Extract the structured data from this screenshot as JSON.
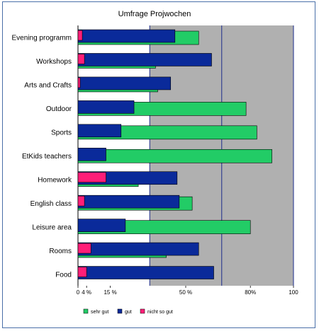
{
  "chart_data": {
    "type": "bar",
    "orientation": "horizontal",
    "title": "Umfrage Projwochen",
    "categories": [
      "Evening programm",
      "Workshops",
      "Arts and Crafts",
      "Outdoor",
      "Sports",
      "EtKids teachers",
      "Homework",
      "English class",
      "Leisure area",
      "Rooms",
      "Food"
    ],
    "series": [
      {
        "name": "sehr gut",
        "color": "#22cc66",
        "values": [
          56,
          36,
          37,
          78,
          83,
          90,
          28,
          53,
          80,
          41,
          0
        ]
      },
      {
        "name": "gut",
        "color": "#0a2a9a",
        "values": [
          45,
          62,
          43,
          26,
          20,
          13,
          46,
          47,
          22,
          56,
          63
        ]
      },
      {
        "name": "nicht so gut",
        "color": "#ff1e78",
        "values": [
          2,
          3,
          1,
          0,
          0,
          0,
          13,
          3,
          0,
          6,
          4
        ]
      }
    ],
    "xlim": [
      0,
      100
    ],
    "x_tick_labels": [
      "0",
      "4 %",
      "15 %",
      "50 %",
      "80%",
      "100"
    ],
    "x_tick_values": [
      0,
      4,
      15,
      50,
      80,
      100
    ],
    "gridlines": [
      33.3,
      66.7,
      100
    ],
    "plot_background": "#b0b0b0",
    "legend_position": "bottom",
    "grid": true
  }
}
